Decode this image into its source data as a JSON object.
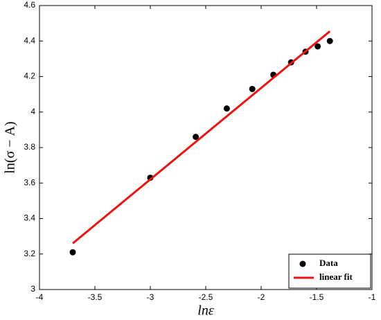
{
  "chart_data": {
    "type": "scatter",
    "xlabel": "lnε",
    "ylabel": "ln(σ − A)",
    "xlim": [
      -4,
      -1
    ],
    "xticks": [
      -4,
      -3.5,
      -3,
      -2.5,
      -2,
      -1.5,
      -1
    ],
    "ylim": [
      3,
      4.6
    ],
    "yticks": [
      3,
      3.2,
      3.4,
      3.6,
      3.8,
      4,
      4.2,
      4.4,
      4.6
    ],
    "legend": "lower right",
    "series": [
      {
        "name": "Data",
        "type": "scatter",
        "color": "#000000",
        "x": [
          -3.7,
          -3.0,
          -2.59,
          -2.31,
          -2.08,
          -1.89,
          -1.73,
          -1.6,
          -1.49,
          -1.38
        ],
        "values": [
          3.21,
          3.63,
          3.86,
          4.02,
          4.13,
          4.21,
          4.28,
          4.34,
          4.37,
          4.4
        ]
      },
      {
        "name": "linear fit",
        "type": "line",
        "color": "#ee1111",
        "x": [
          -3.7,
          -1.38
        ],
        "values": [
          3.26,
          4.455
        ]
      }
    ]
  }
}
